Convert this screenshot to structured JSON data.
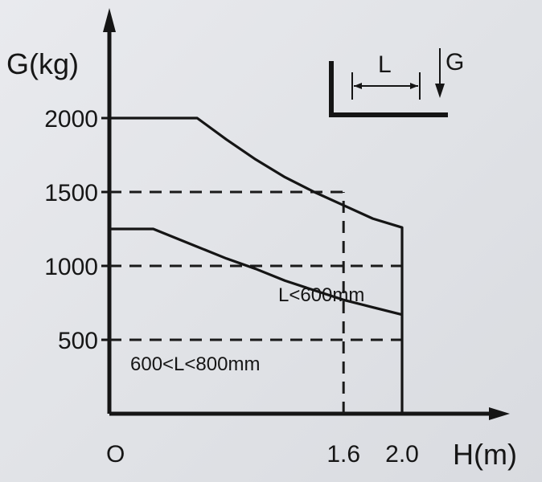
{
  "chart_data": {
    "type": "line",
    "title": "",
    "xlabel": "H(m)",
    "ylabel": "G(kg)",
    "xlim": [
      0,
      2.0
    ],
    "ylim": [
      0,
      2000
    ],
    "origin_label": "O",
    "x_ticks": [
      {
        "value": 1.6,
        "label": "1.6"
      },
      {
        "value": 2.0,
        "label": "2.0"
      }
    ],
    "y_ticks": [
      {
        "value": 500,
        "label": "500"
      },
      {
        "value": 1000,
        "label": "1000"
      },
      {
        "value": 1500,
        "label": "1500"
      },
      {
        "value": 2000,
        "label": "2000"
      }
    ],
    "series": [
      {
        "name": "L<600mm",
        "x": [
          0,
          0.6,
          0.8,
          1.0,
          1.2,
          1.4,
          1.6,
          1.8,
          2.0,
          2.0
        ],
        "y": [
          2000,
          2000,
          1855,
          1720,
          1600,
          1500,
          1410,
          1320,
          1260,
          0
        ]
      },
      {
        "name": "600<L<800mm",
        "x": [
          0,
          0.3,
          0.6,
          0.8,
          1.0,
          1.2,
          1.4,
          1.6,
          1.8,
          2.0
        ],
        "y": [
          1250,
          1250,
          1130,
          1050,
          980,
          900,
          835,
          770,
          720,
          670
        ]
      }
    ],
    "reference_lines": [
      {
        "orientation": "horizontal",
        "y": 1500,
        "x_end": 1.6
      },
      {
        "orientation": "horizontal",
        "y": 1000,
        "x_end": 2.0
      },
      {
        "orientation": "horizontal",
        "y": 500,
        "x_end": 2.0
      },
      {
        "orientation": "vertical",
        "x": 1.6,
        "y_end": 1500
      }
    ],
    "inset": {
      "length_label": "L",
      "load_label": "G"
    }
  }
}
